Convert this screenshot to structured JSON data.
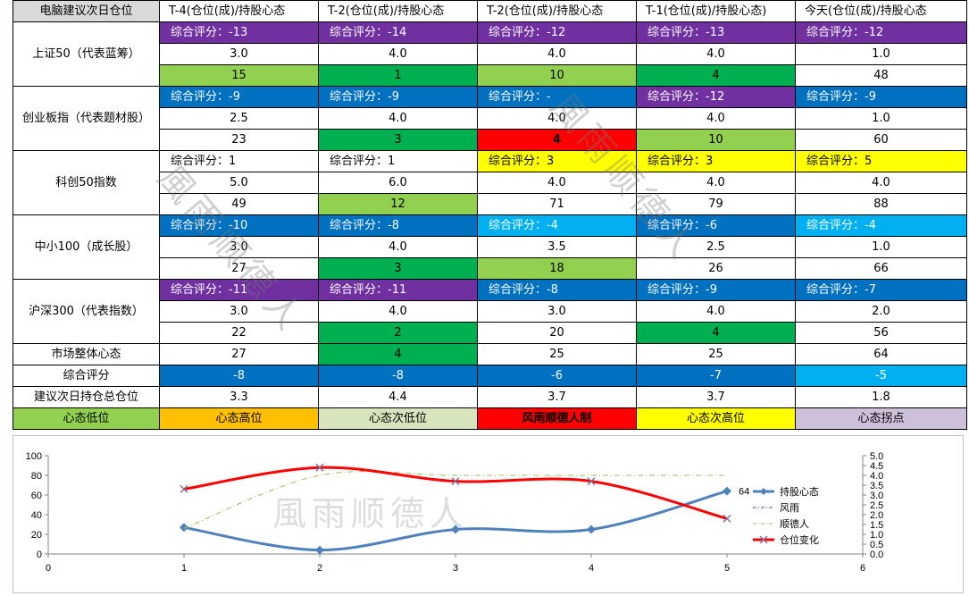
{
  "table": {
    "headers": [
      "电脑建议次日仓位",
      "T-4(仓位(成)/持股心态",
      "T-2(仓位(成)/持股心态",
      "T-2(仓位(成)/持股心态",
      "T-1(仓位(成)/持股心态)",
      "今天(仓位(成)/持股心态"
    ],
    "indices": [
      {
        "name": "上证50（代表蓝筹）",
        "scores": [
          "综合评分：-13",
          "综合评分：-14",
          "综合评分：-12",
          "综合评分：-13",
          "综合评分：-12"
        ],
        "positions": [
          "3.0",
          "4.0",
          "4.0",
          "4.0",
          "1.0"
        ],
        "moods": [
          "15",
          "1",
          "10",
          "4",
          "48"
        ]
      },
      {
        "name": "创业板指（代表题材股）",
        "scores": [
          "综合评分：-9",
          "综合评分：-9",
          "综合评分：-",
          "综合评分：-12",
          "综合评分：-9"
        ],
        "positions": [
          "2.5",
          "4.0",
          "4.0",
          "4.0",
          "1.0"
        ],
        "moods": [
          "23",
          "3",
          "4",
          "10",
          "60"
        ]
      },
      {
        "name": "科创50指数",
        "scores": [
          "综合评分：1",
          "综合评分：1",
          "综合评分：3",
          "综合评分：3",
          "综合评分：5"
        ],
        "positions": [
          "5.0",
          "6.0",
          "4.0",
          "4.0",
          "4.0"
        ],
        "moods": [
          "49",
          "12",
          "71",
          "79",
          "88"
        ]
      },
      {
        "name": "中小100（成长股）",
        "scores": [
          "综合评分：-10",
          "综合评分：-8",
          "综合评分：-4",
          "综合评分：-6",
          "综合评分：-4"
        ],
        "positions": [
          "3.0",
          "4.0",
          "3.5",
          "2.5",
          "1.0"
        ],
        "moods": [
          "27",
          "3",
          "18",
          "26",
          "66"
        ]
      },
      {
        "name": "沪深300（代表指数）",
        "scores": [
          "综合评分：-11",
          "综合评分：-11",
          "综合评分：-8",
          "综合评分：-9",
          "综合评分：-7"
        ],
        "positions": [
          "3.0",
          "4.0",
          "3.0",
          "4.0",
          "2.0"
        ],
        "moods": [
          "22",
          "2",
          "20",
          "4",
          "56"
        ]
      }
    ],
    "market_label": "市场整体心态",
    "market": [
      "27",
      "4",
      "25",
      "25",
      "64"
    ],
    "total_label": "综合评分",
    "total": [
      "-8",
      "-8",
      "-6",
      "-7",
      "-5"
    ],
    "suggest_label": "建议次日持仓总仓位",
    "suggest": [
      "3.3",
      "4.4",
      "3.7",
      "3.7",
      "1.8"
    ]
  },
  "legend_row": [
    "心态低位",
    "心态高位",
    "心态次低位",
    "风雨顺德人制",
    "心态次高位",
    "心态拐点"
  ],
  "watermark": "風雨顺德人",
  "colors": {
    "purple": "#7030a0",
    "blue": "#0070c0",
    "light_blue": "#00b0f0",
    "yellow": "#ffff00",
    "light_green": "#92d050",
    "green": "#00b050",
    "orange": "#ffc000",
    "red": "#ff0000",
    "lilac": "#ccc0da",
    "sage": "#d8e4bc",
    "line_blue": "#4f81bd",
    "line_red": "#ff0000",
    "line_purple": "#7030a0",
    "line_green": "#9bbb59"
  },
  "chart_data": {
    "type": "line",
    "x": [
      1,
      2,
      3,
      4,
      5
    ],
    "xlim": [
      0,
      6
    ],
    "xticks": [
      "0",
      "1",
      "2",
      "3",
      "4",
      "5",
      "6"
    ],
    "ylim_left": [
      0,
      100
    ],
    "yticks_left": [
      "0",
      "20",
      "40",
      "60",
      "80",
      "100"
    ],
    "ylim_right": [
      0,
      5
    ],
    "yticks_right": [
      "0.0",
      "0.5",
      "1.0",
      "1.5",
      "2.0",
      "2.5",
      "3.0",
      "3.5",
      "4.0",
      "4.5",
      "5.0"
    ],
    "series": [
      {
        "name": "持股心态",
        "axis": "left",
        "values": [
          27,
          4,
          25,
          25,
          64
        ],
        "color": "#4f81bd",
        "marker": "diamond"
      },
      {
        "name": "风雨",
        "axis": "right",
        "values": [
          null,
          null,
          null,
          null,
          null
        ],
        "color": "#7030a0",
        "dash": "dashdot"
      },
      {
        "name": "顺德人",
        "axis": "right",
        "values": [
          1.3,
          4.0,
          4.0,
          4.0,
          4.0
        ],
        "color": "#9bbb59",
        "dash": "dashdot"
      },
      {
        "name": "仓位变化",
        "axis": "right",
        "values": [
          3.3,
          4.4,
          3.7,
          3.7,
          1.8
        ],
        "color": "#ff0000",
        "marker": "x"
      }
    ],
    "data_labels": [
      {
        "series": "持股心态",
        "index": 4,
        "text": "64"
      }
    ],
    "legend_position": "right"
  }
}
